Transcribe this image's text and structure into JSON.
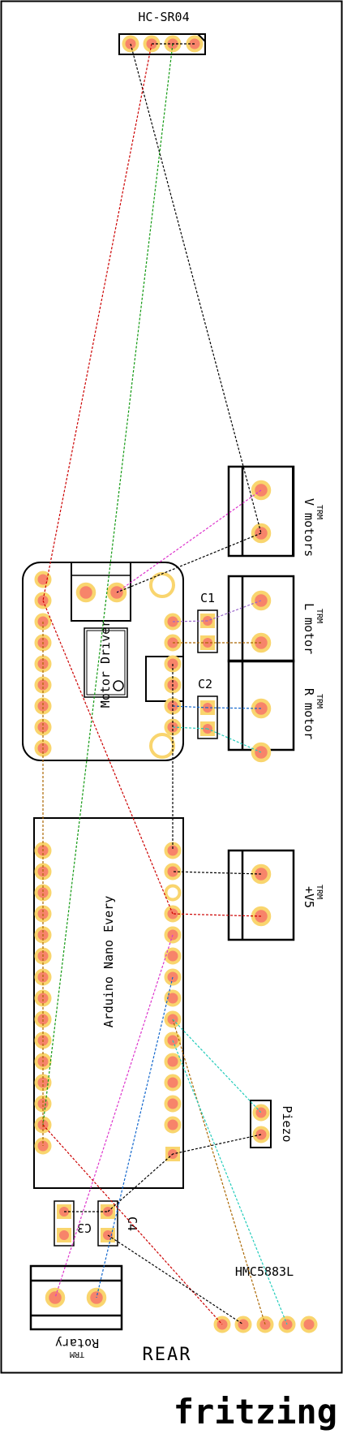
{
  "labels": {
    "hcsr04": "HC-SR04",
    "motor_driver": "Motor Driver",
    "arduino": "Arduino Nano Every",
    "hmc": "HMC5883L",
    "piezo": "Piezo",
    "rear": "REAR",
    "brand": "fritzing",
    "c1": "C1",
    "c2": "C2",
    "c3": "C3",
    "c4": "C4",
    "trm_v_motors": "V motors",
    "trm_l_motor": "L motor",
    "trm_r_motor": "R motor",
    "trm_v5": "+V5",
    "trm_rotary": "Rotary",
    "trm_tag": "TRM"
  },
  "colors": {
    "pad_fill": "#f7846a",
    "pad_ring": "#f9d56e",
    "wire_black": "#000000",
    "wire_red": "#cc0000",
    "wire_green": "#119911",
    "wire_magenta": "#dd33cc",
    "wire_blue": "#1166cc",
    "wire_cyan": "#22ccbb",
    "wire_brown": "#aa6600",
    "wire_purple": "#9966cc"
  }
}
